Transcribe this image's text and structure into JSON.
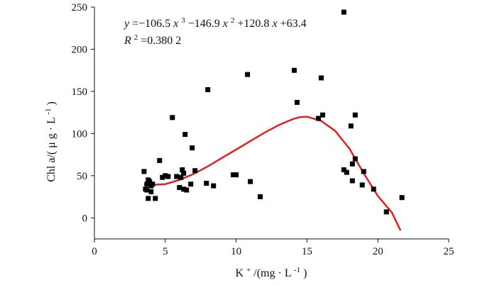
{
  "chart_data": {
    "type": "scatter",
    "xlabel_base": "K",
    "xlabel_sup": "+",
    "xlabel_rest": "/(mg · L",
    "xlabel_exp": "-1",
    "xlabel_close": ")",
    "ylabel_main": "Chl a/( μ g · L",
    "ylabel_exp": "-1",
    "ylabel_close": ")",
    "xlim": [
      0,
      25
    ],
    "ylim": [
      -25,
      250
    ],
    "x_ticks": [
      0,
      5,
      10,
      15,
      20,
      25
    ],
    "y_ticks": [
      0,
      50,
      100,
      150,
      200,
      250
    ],
    "x_tick_labels": [
      "0",
      "5",
      "10",
      "15",
      "20",
      "25"
    ],
    "y_tick_labels": [
      "0",
      "50",
      "100",
      "150",
      "200",
      "250"
    ],
    "equation": {
      "y": "y",
      "eq_a": "=−106.5 ",
      "x3": "x",
      "e3": "3",
      "eq_b": "−146.9 ",
      "x2": "x",
      "e2": "2",
      "eq_c": "+120.8 ",
      "x1": "x",
      "eq_d": "+63.4",
      "r": "R",
      "r_exp": "2",
      "r_val": "=0.380 2"
    },
    "fit_color": "#e02020",
    "marker_color": "#000000",
    "fit_curve_points": [
      [
        3.5,
        40
      ],
      [
        4,
        39
      ],
      [
        5,
        40
      ],
      [
        6,
        45
      ],
      [
        7,
        52
      ],
      [
        8,
        61
      ],
      [
        9,
        71
      ],
      [
        10,
        81
      ],
      [
        11,
        91
      ],
      [
        12,
        101
      ],
      [
        13,
        110
      ],
      [
        14,
        117
      ],
      [
        14.5,
        119.5
      ],
      [
        15,
        120
      ],
      [
        16,
        115
      ],
      [
        17,
        103
      ],
      [
        18,
        82
      ],
      [
        19,
        53
      ],
      [
        20,
        26
      ],
      [
        21,
        6
      ],
      [
        21.6,
        -15
      ]
    ],
    "points": [
      [
        3.5,
        55
      ],
      [
        3.6,
        34
      ],
      [
        3.7,
        40
      ],
      [
        3.7,
        33
      ],
      [
        3.8,
        45
      ],
      [
        3.9,
        43
      ],
      [
        3.8,
        23
      ],
      [
        4.0,
        31
      ],
      [
        4.0,
        38
      ],
      [
        4.1,
        40
      ],
      [
        4.3,
        23
      ],
      [
        4.6,
        68
      ],
      [
        4.8,
        48
      ],
      [
        5.0,
        50
      ],
      [
        5.2,
        49
      ],
      [
        5.5,
        119
      ],
      [
        5.8,
        49
      ],
      [
        6.0,
        36
      ],
      [
        6.1,
        48
      ],
      [
        6.2,
        57
      ],
      [
        6.3,
        34
      ],
      [
        6.3,
        53
      ],
      [
        6.4,
        99
      ],
      [
        6.5,
        33
      ],
      [
        6.8,
        40
      ],
      [
        6.9,
        83
      ],
      [
        7.1,
        56
      ],
      [
        7.9,
        41
      ],
      [
        8.0,
        152
      ],
      [
        8.4,
        38
      ],
      [
        9.8,
        51
      ],
      [
        10.0,
        51
      ],
      [
        10.8,
        170
      ],
      [
        11.0,
        43
      ],
      [
        11.7,
        25
      ],
      [
        14.1,
        175
      ],
      [
        14.3,
        137
      ],
      [
        15.8,
        118
      ],
      [
        16.0,
        166
      ],
      [
        16.1,
        122
      ],
      [
        17.6,
        244
      ],
      [
        17.6,
        57
      ],
      [
        17.8,
        54
      ],
      [
        18.1,
        109
      ],
      [
        18.2,
        64
      ],
      [
        18.2,
        44
      ],
      [
        18.4,
        122
      ],
      [
        18.4,
        70
      ],
      [
        18.9,
        39
      ],
      [
        19.0,
        55
      ],
      [
        19.7,
        34
      ],
      [
        20.6,
        7
      ],
      [
        21.7,
        24
      ]
    ]
  }
}
